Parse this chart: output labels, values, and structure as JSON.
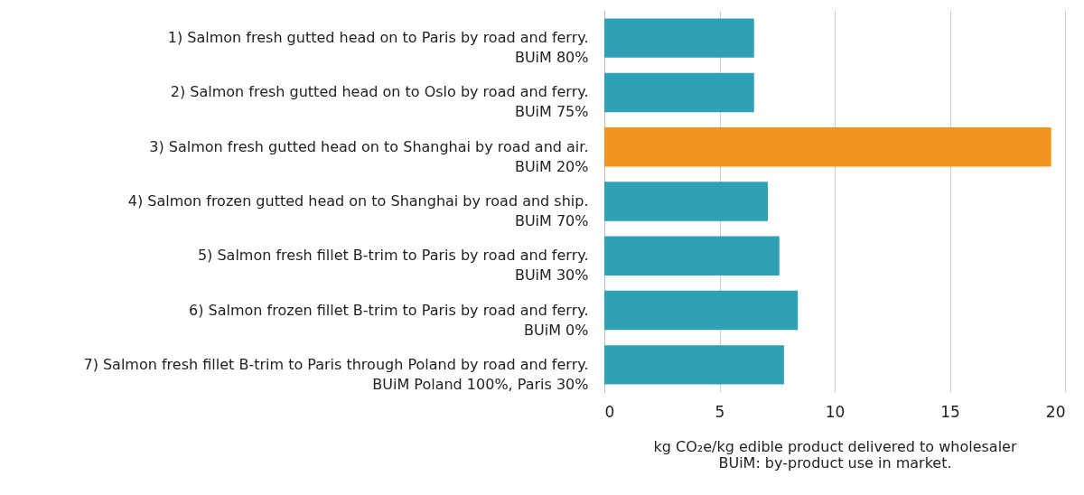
{
  "chart_data": {
    "type": "bar",
    "orientation": "horizontal",
    "categories": [
      "1) Salmon fresh gutted head on to Paris by road and ferry.\nBUiM 80%",
      "2) Salmon fresh gutted head on to Oslo by road and ferry.\nBUiM 75%",
      "3) Salmon fresh gutted head on to Shanghai by road and air.\nBUiM 20%",
      "4) Salmon frozen gutted head on to Shanghai by road and ship.\nBUiM 70%",
      "5) Salmon fresh fillet B-trim to Paris by road and ferry.\nBUiM 30%",
      "6) Salmon frozen fillet B-trim to Paris by road and ferry.\nBUiM 0%",
      "7) Salmon fresh fillet B-trim to Paris through Poland by road and ferry.\nBUiM Poland 100%, Paris 30%"
    ],
    "values": [
      6.5,
      6.5,
      19.4,
      7.1,
      7.6,
      8.4,
      7.8
    ],
    "colors": [
      "#2ea1b5",
      "#2ea1b5",
      "#f39322",
      "#2ea1b5",
      "#2ea1b5",
      "#2ea1b5",
      "#2ea1b5"
    ],
    "xlim": [
      0,
      20
    ],
    "xticks": [
      0,
      5,
      10,
      15,
      20
    ],
    "grid": "x",
    "xlabel": "kg CO₂e/kg edible product delivered to wholesaler",
    "annotations": [
      "BUiM: by-product use in market."
    ]
  }
}
